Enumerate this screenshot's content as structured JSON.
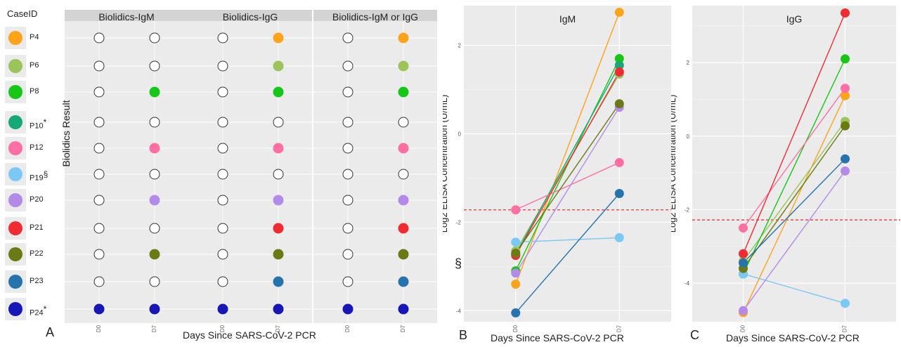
{
  "legend": {
    "title": "CaseID",
    "items": [
      {
        "label": "P4",
        "sup": "",
        "color": "#FFA31A"
      },
      {
        "label": "P6",
        "sup": "",
        "color": "#9BC45A"
      },
      {
        "label": "P8",
        "sup": "",
        "color": "#17C617"
      },
      {
        "label": "P10",
        "sup": "*",
        "color": "#16A877"
      },
      {
        "label": "P12",
        "sup": "",
        "color": "#FF6FA3"
      },
      {
        "label": "P19",
        "sup": "§",
        "color": "#7CC8F5"
      },
      {
        "label": "P20",
        "sup": "",
        "color": "#B48AE8"
      },
      {
        "label": "P21",
        "sup": "",
        "color": "#F02B32"
      },
      {
        "label": "P22",
        "sup": "",
        "color": "#6B7A14"
      },
      {
        "label": "P23",
        "sup": "",
        "color": "#2673AE"
      },
      {
        "label": "P24",
        "sup": "*",
        "color": "#1717B8"
      }
    ]
  },
  "panelA": {
    "letter": "A",
    "ylabel": "Biolidics Result",
    "xlabel": "Days Since SARS-CoV-2 PCR",
    "facets": [
      {
        "title": "Biolidics-IgM",
        "d7_positive": [
          "P8",
          "P12",
          "P20",
          "P22",
          "P24"
        ],
        "d0_positive": [
          "P24"
        ]
      },
      {
        "title": "Biolidics-IgG",
        "d7_positive": [
          "P4",
          "P6",
          "P8",
          "P12",
          "P20",
          "P21",
          "P22",
          "P23",
          "P24"
        ],
        "d0_positive": [
          "P24"
        ]
      },
      {
        "title": "Biolidics-IgM or IgG",
        "d7_positive": [
          "P4",
          "P6",
          "P8",
          "P12",
          "P20",
          "P21",
          "P22",
          "P23",
          "P24"
        ],
        "d0_positive": [
          "P24"
        ]
      }
    ],
    "ticks": [
      "D0",
      "D7"
    ]
  },
  "panelB": {
    "letter": "B",
    "annotation": "§",
    "xlabel": "Days Since SARS-CoV-2 PCR"
  },
  "panelC": {
    "letter": "C",
    "xlabel": "Days Since SARS-CoV-2 PCR"
  },
  "chart_data": [
    {
      "type": "scatter",
      "title": "IgM",
      "xlabel": "",
      "ylabel": "Log2 ELISA Concentration (U/mL)",
      "categories": [
        "D0",
        "D7"
      ],
      "ylim": [
        -4.25,
        2.9
      ],
      "yticks": [
        -4,
        -2,
        0,
        2
      ],
      "cutoff": -1.72,
      "cutoff_color": "#E53935",
      "series": [
        {
          "name": "P4",
          "color": "#FFA31A",
          "values": [
            -3.4,
            2.75
          ]
        },
        {
          "name": "P6",
          "color": "#9BC45A",
          "values": [
            -2.65,
            1.35
          ]
        },
        {
          "name": "P8",
          "color": "#17C617",
          "values": [
            -3.1,
            1.7
          ]
        },
        {
          "name": "P10",
          "color": "#16A877",
          "values": [
            -2.72,
            1.55
          ]
        },
        {
          "name": "P12",
          "color": "#FF6FA3",
          "values": [
            -1.72,
            -0.65
          ]
        },
        {
          "name": "P19",
          "color": "#7CC8F5",
          "values": [
            -2.45,
            -2.35
          ]
        },
        {
          "name": "P20",
          "color": "#B48AE8",
          "values": [
            -3.15,
            0.6
          ]
        },
        {
          "name": "P21",
          "color": "#F02B32",
          "values": [
            -2.75,
            1.4
          ]
        },
        {
          "name": "P22",
          "color": "#6B7A14",
          "values": [
            -2.7,
            0.68
          ]
        },
        {
          "name": "P23",
          "color": "#2673AE",
          "values": [
            -4.05,
            -1.35
          ]
        }
      ]
    },
    {
      "type": "scatter",
      "title": "IgG",
      "xlabel": "",
      "ylabel": "Log2 ELISA Concentration (U/mL)",
      "categories": [
        "D0",
        "D7"
      ],
      "ylim": [
        -5.05,
        3.55
      ],
      "yticks": [
        -4,
        -2,
        0,
        2
      ],
      "cutoff": -2.28,
      "cutoff_color": "#E53935",
      "series": [
        {
          "name": "P4",
          "color": "#FFA31A",
          "values": [
            -4.8,
            1.1
          ]
        },
        {
          "name": "P6",
          "color": "#9BC45A",
          "values": [
            -3.4,
            0.4
          ]
        },
        {
          "name": "P8",
          "color": "#17C617",
          "values": [
            -3.75,
            2.1
          ]
        },
        {
          "name": "P12",
          "color": "#FF6FA3",
          "values": [
            -2.5,
            1.3
          ]
        },
        {
          "name": "P19",
          "color": "#7CC8F5",
          "values": [
            -3.75,
            -4.55
          ]
        },
        {
          "name": "P20",
          "color": "#B48AE8",
          "values": [
            -4.75,
            -0.95
          ]
        },
        {
          "name": "P21",
          "color": "#F02B32",
          "values": [
            -3.2,
            3.35
          ]
        },
        {
          "name": "P22",
          "color": "#6B7A14",
          "values": [
            -3.6,
            0.28
          ]
        },
        {
          "name": "P23",
          "color": "#2673AE",
          "values": [
            -3.45,
            -0.62
          ]
        }
      ]
    }
  ]
}
